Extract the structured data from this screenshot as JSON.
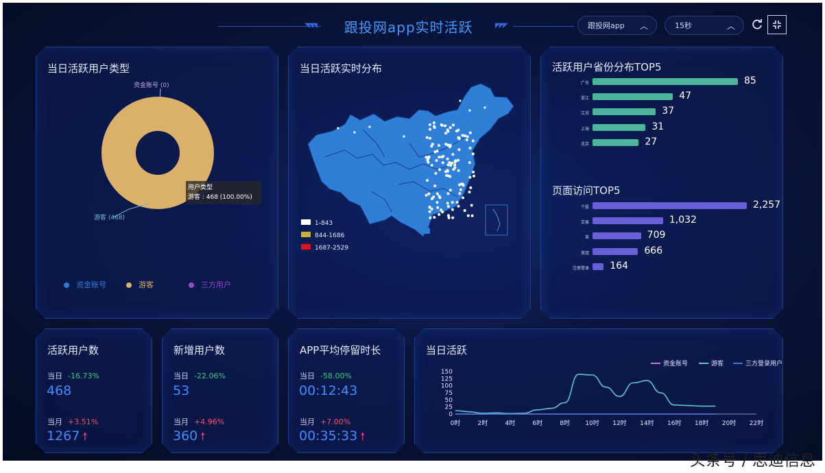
{
  "header": {
    "title": "跟投网app实时活跃",
    "app_select": "跟投网app",
    "interval_select": "15秒",
    "refresh_icon": "refresh-icon",
    "collapse_icon": "collapse-icon"
  },
  "user_type_panel": {
    "title": "当日活跃用户类型",
    "callout_top": "资金账号 (0)",
    "callout_bottom": "游客 (468)",
    "tooltip_title": "用户类型",
    "tooltip_value": "游客 : 468 (100.00%)",
    "legend": [
      {
        "label": "资金账号",
        "color": "#2e7bd8"
      },
      {
        "label": "游客",
        "color": "#d9b06a"
      },
      {
        "label": "三方用户",
        "color": "#8a4fc0"
      }
    ],
    "chart_data": {
      "type": "pie",
      "categories": [
        "资金账号",
        "游客",
        "三方用户"
      ],
      "values": [
        0,
        468,
        0
      ]
    }
  },
  "map_panel": {
    "title": "当日活跃实时分布",
    "legend": [
      {
        "label": "1-843",
        "color": "#ffffff"
      },
      {
        "label": "844-1686",
        "color": "#c9b23a"
      },
      {
        "label": "1687-2529",
        "color": "#e0121c"
      }
    ]
  },
  "province_panel": {
    "title": "活跃用户省份分布TOP5",
    "color": "#4fb59a",
    "chart_data": {
      "type": "bar",
      "categories": [
        "广东",
        "浙江",
        "江苏",
        "上海",
        "北京"
      ],
      "values": [
        85,
        47,
        37,
        31,
        27
      ],
      "value_labels": [
        "85",
        "47",
        "37",
        "31",
        "27"
      ]
    }
  },
  "pages_panel": {
    "title": "页面访问TOP5",
    "color": "#6a5fd8",
    "chart_data": {
      "type": "bar",
      "categories": [
        "个股",
        "交易",
        "首",
        "宽组",
        "注册登录"
      ],
      "values": [
        2257,
        1032,
        709,
        666,
        164
      ],
      "value_labels": [
        "2,257",
        "1,032",
        "709",
        "666",
        "164"
      ]
    }
  },
  "stats": [
    {
      "title": "活跃用户数",
      "day_label": "当日",
      "day_pct": "-16.73%",
      "day_value": "468",
      "month_label": "当月",
      "month_pct": "+3.51%",
      "month_value": "1267"
    },
    {
      "title": "新增用户数",
      "day_label": "当日",
      "day_pct": "-22.06%",
      "day_value": "53",
      "month_label": "当月",
      "month_pct": "+4.96%",
      "month_value": "360"
    },
    {
      "title": "APP平均停留时长",
      "day_label": "当日",
      "day_pct": "-58.00%",
      "day_value": "00:12:43",
      "month_label": "当月",
      "month_pct": "+7.00%",
      "month_value": "00:35:33"
    }
  ],
  "daily_panel": {
    "title": "当日活跃",
    "chart_data": {
      "type": "line",
      "x": [
        "0时",
        "1时",
        "2时",
        "3时",
        "4时",
        "5时",
        "6时",
        "7时",
        "8时",
        "9时",
        "10时",
        "11时",
        "12时",
        "13时",
        "14时",
        "15时",
        "16时",
        "17时",
        "18时",
        "19时"
      ],
      "x_ticks": [
        "0时",
        "2时",
        "4时",
        "6时",
        "8时",
        "10时",
        "12时",
        "14时",
        "16时",
        "18时",
        "20时",
        "22时"
      ],
      "ylim": [
        0,
        150
      ],
      "y_ticks": [
        "0",
        "25",
        "50",
        "75",
        "100",
        "125",
        "150"
      ],
      "legend_position": "top-right",
      "series": [
        {
          "name": "资金账号",
          "color": "#c07ad8",
          "values": [
            0,
            0,
            0,
            0,
            0,
            0,
            0,
            0,
            0,
            0,
            0,
            0,
            0,
            0,
            0,
            0,
            0,
            0,
            0,
            0
          ]
        },
        {
          "name": "游客",
          "color": "#5bc6d6",
          "values": [
            12,
            8,
            3,
            4,
            2,
            3,
            15,
            20,
            40,
            140,
            138,
            95,
            62,
            110,
            118,
            75,
            32,
            30,
            28,
            28
          ]
        },
        {
          "name": "三方登录用户",
          "color": "#4a76c8",
          "values": [
            0,
            0,
            0,
            0,
            0,
            0,
            0,
            0,
            0,
            0,
            0,
            0,
            0,
            0,
            0,
            0,
            0,
            0,
            0,
            0
          ]
        }
      ]
    }
  },
  "watermark": "头条号 / 思迪信息"
}
